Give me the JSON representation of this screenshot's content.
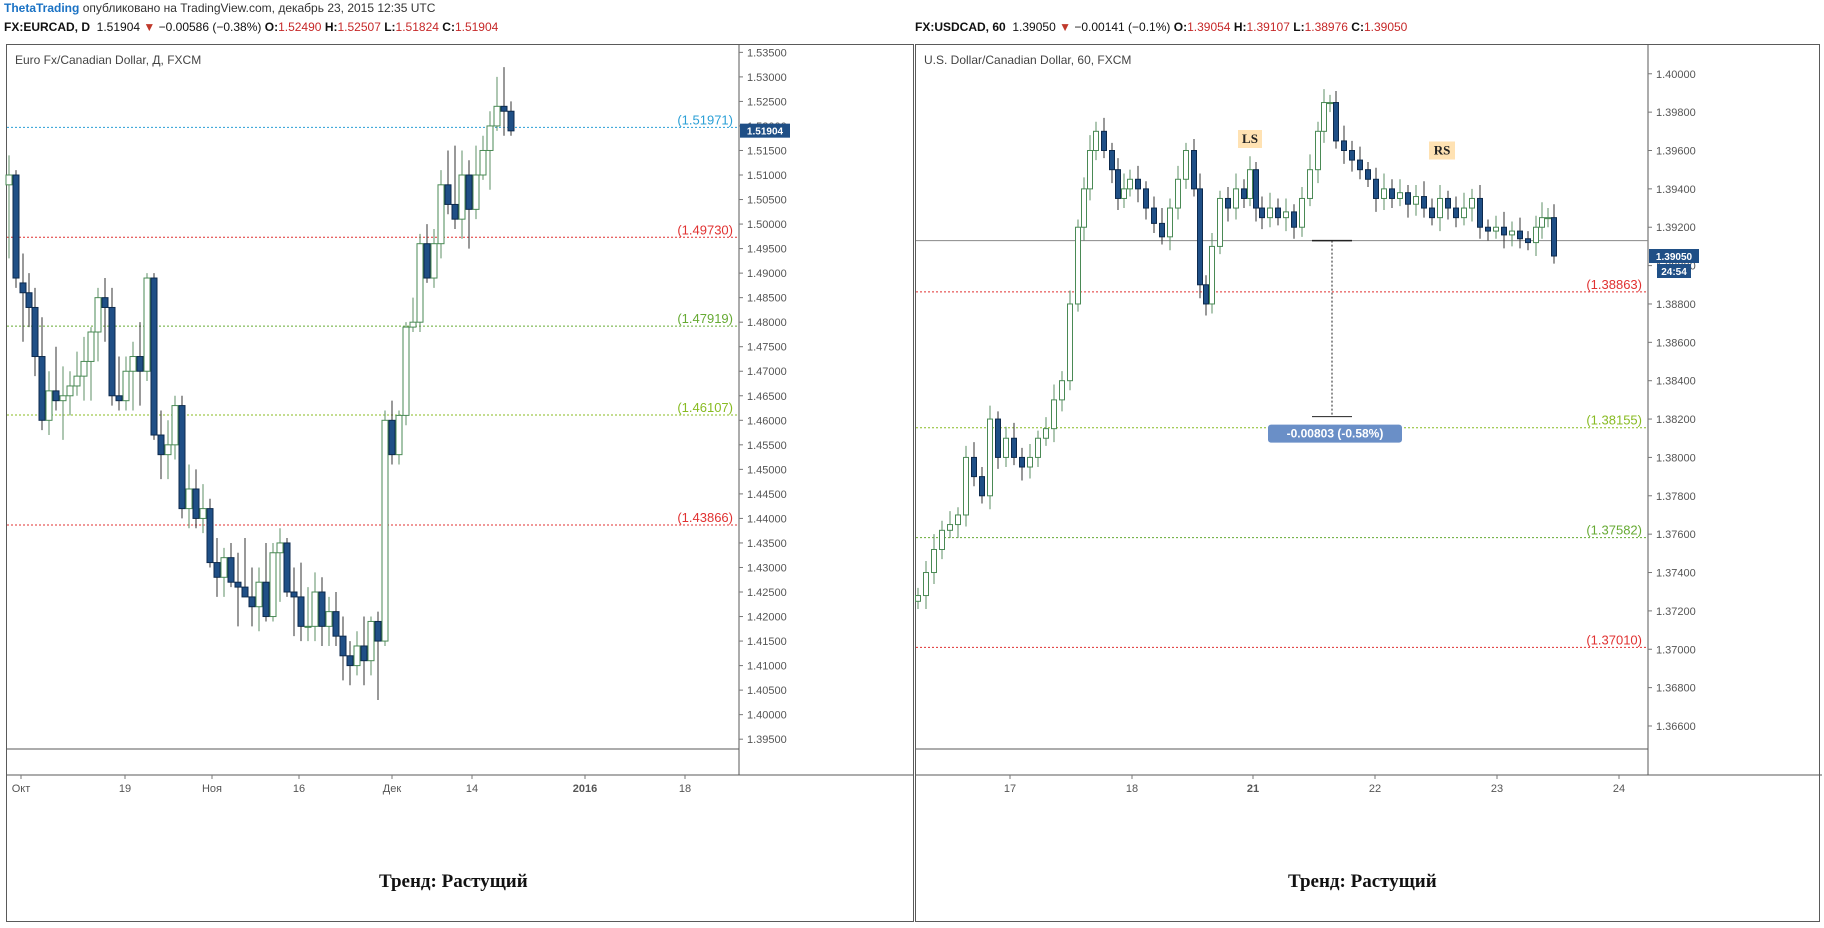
{
  "header": {
    "author": "ThetaTrading",
    "published": "опубликовано на TradingView.com, декабрь 23, 2015 12:35 UTC"
  },
  "colors": {
    "up_body": "#ffffff",
    "up_border": "#4a8a55",
    "down_body": "#1f4f86",
    "down_border": "#0d2a4d",
    "wick": "#444444",
    "brand": "#1a72c4",
    "price_badge": "#1f4f86",
    "red_level": "#e03131",
    "green_level": "#66aa33",
    "blue_level": "#2a9fd6",
    "measure_badge": "#6a8fc7",
    "ls_rs_bg": "#ffe2b3"
  },
  "left": {
    "symbol": "FX:EURCAD, D",
    "last": "1.51904",
    "change": "−0.00586 (−0.38%)",
    "ohlc": {
      "o": "1.52490",
      "h": "1.52507",
      "l": "1.51824",
      "c": "1.51904"
    },
    "title": "Euro Fx/Canadian Dollar, Д, FXCM",
    "trend": "Тренд: Растущий",
    "price_label": "1.51904",
    "levels": [
      {
        "value": 1.51971,
        "label": "(1.51971)",
        "color": "#2a9fd6"
      },
      {
        "value": 1.4973,
        "label": "(1.49730)",
        "color": "#e03131"
      },
      {
        "value": 1.47919,
        "label": "(1.47919)",
        "color": "#66aa33"
      },
      {
        "value": 1.46107,
        "label": "(1.46107)",
        "color": "#88bb22"
      },
      {
        "value": 1.43866,
        "label": "(1.43866)",
        "color": "#e03131"
      }
    ],
    "y_ticks": [
      "1.53500",
      "1.53000",
      "1.52500",
      "1.52000",
      "1.51500",
      "1.51000",
      "1.50500",
      "1.50000",
      "1.49500",
      "1.49000",
      "1.48500",
      "1.48000",
      "1.47500",
      "1.47000",
      "1.46500",
      "1.46000",
      "1.45500",
      "1.45000",
      "1.44500",
      "1.44000",
      "1.43500",
      "1.43000",
      "1.42500",
      "1.42000",
      "1.41500",
      "1.41000",
      "1.40500",
      "1.40000",
      "1.39500"
    ],
    "x_ticks": [
      {
        "label": "Окт",
        "bold": false
      },
      {
        "label": "19",
        "bold": false
      },
      {
        "label": "Ноя",
        "bold": false
      },
      {
        "label": "16",
        "bold": false
      },
      {
        "label": "Дек",
        "bold": false
      },
      {
        "label": "14",
        "bold": false
      },
      {
        "label": "2016",
        "bold": true
      },
      {
        "label": "18",
        "bold": false
      }
    ]
  },
  "right": {
    "symbol": "FX:USDCAD, 60",
    "last": "1.39050",
    "change": "−0.00141 (−0.1%)",
    "ohlc": {
      "o": "1.39054",
      "h": "1.39107",
      "l": "1.38976",
      "c": "1.39050"
    },
    "title": "U.S. Dollar/Canadian Dollar, 60, FXCM",
    "trend": "Тренд: Растущий",
    "price_label": "1.39050",
    "countdown": "24:54",
    "ls": "LS",
    "rs": "RS",
    "measure": "-0.00803 (-0.58%)",
    "neckline": 1.3913,
    "levels": [
      {
        "value": 1.38863,
        "label": "(1.38863)",
        "color": "#e03131"
      },
      {
        "value": 1.38155,
        "label": "(1.38155)",
        "color": "#88bb22"
      },
      {
        "value": 1.37582,
        "label": "(1.37582)",
        "color": "#66aa33"
      },
      {
        "value": 1.3701,
        "label": "(1.37010)",
        "color": "#e03131"
      }
    ],
    "y_ticks": [
      "1.40000",
      "1.39800",
      "1.39600",
      "1.39400",
      "1.39200",
      "1.39000",
      "1.38800",
      "1.38600",
      "1.38400",
      "1.38200",
      "1.38000",
      "1.37800",
      "1.37600",
      "1.37400",
      "1.37200",
      "1.37000",
      "1.36800",
      "1.36600"
    ],
    "x_ticks": [
      {
        "label": "17",
        "bold": false
      },
      {
        "label": "18",
        "bold": false
      },
      {
        "label": "21",
        "bold": true
      },
      {
        "label": "22",
        "bold": false
      },
      {
        "label": "23",
        "bold": false
      },
      {
        "label": "24",
        "bold": false
      }
    ]
  }
}
